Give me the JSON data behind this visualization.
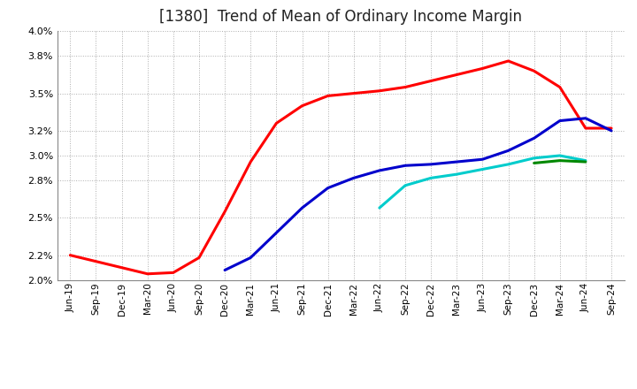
{
  "title": "[1380]  Trend of Mean of Ordinary Income Margin",
  "x_labels": [
    "Jun-19",
    "Sep-19",
    "Dec-19",
    "Mar-20",
    "Jun-20",
    "Sep-20",
    "Dec-20",
    "Mar-21",
    "Jun-21",
    "Sep-21",
    "Dec-21",
    "Mar-22",
    "Jun-22",
    "Sep-22",
    "Dec-22",
    "Mar-23",
    "Jun-23",
    "Sep-23",
    "Dec-23",
    "Mar-24",
    "Jun-24",
    "Sep-24"
  ],
  "yticks": [
    2.0,
    2.2,
    2.5,
    2.8,
    3.0,
    3.2,
    3.5,
    3.8,
    4.0
  ],
  "ylim": [
    2.0,
    4.0
  ],
  "series_3yr": {
    "color": "#ff0000",
    "data": [
      2.2,
      2.15,
      2.1,
      2.05,
      2.06,
      2.18,
      2.55,
      2.95,
      3.26,
      3.4,
      3.48,
      3.5,
      3.52,
      3.55,
      3.6,
      3.65,
      3.7,
      3.76,
      3.68,
      3.55,
      3.22,
      3.22
    ]
  },
  "series_5yr": {
    "color": "#0000cc",
    "data": [
      null,
      null,
      null,
      null,
      null,
      null,
      2.08,
      2.18,
      2.38,
      2.58,
      2.74,
      2.82,
      2.88,
      2.92,
      2.93,
      2.95,
      2.97,
      3.04,
      3.14,
      3.28,
      3.3,
      3.2
    ]
  },
  "series_7yr": {
    "color": "#00cccc",
    "data": [
      null,
      null,
      null,
      null,
      null,
      null,
      null,
      null,
      null,
      null,
      null,
      null,
      2.58,
      2.76,
      2.82,
      2.85,
      2.89,
      2.93,
      2.98,
      3.0,
      2.96,
      null
    ]
  },
  "series_10yr": {
    "color": "#008800",
    "data": [
      null,
      null,
      null,
      null,
      null,
      null,
      null,
      null,
      null,
      null,
      null,
      null,
      null,
      null,
      null,
      null,
      null,
      null,
      2.94,
      2.96,
      2.95,
      null
    ]
  },
  "background_color": "#ffffff",
  "grid_color": "#999999",
  "title_fontsize": 12
}
